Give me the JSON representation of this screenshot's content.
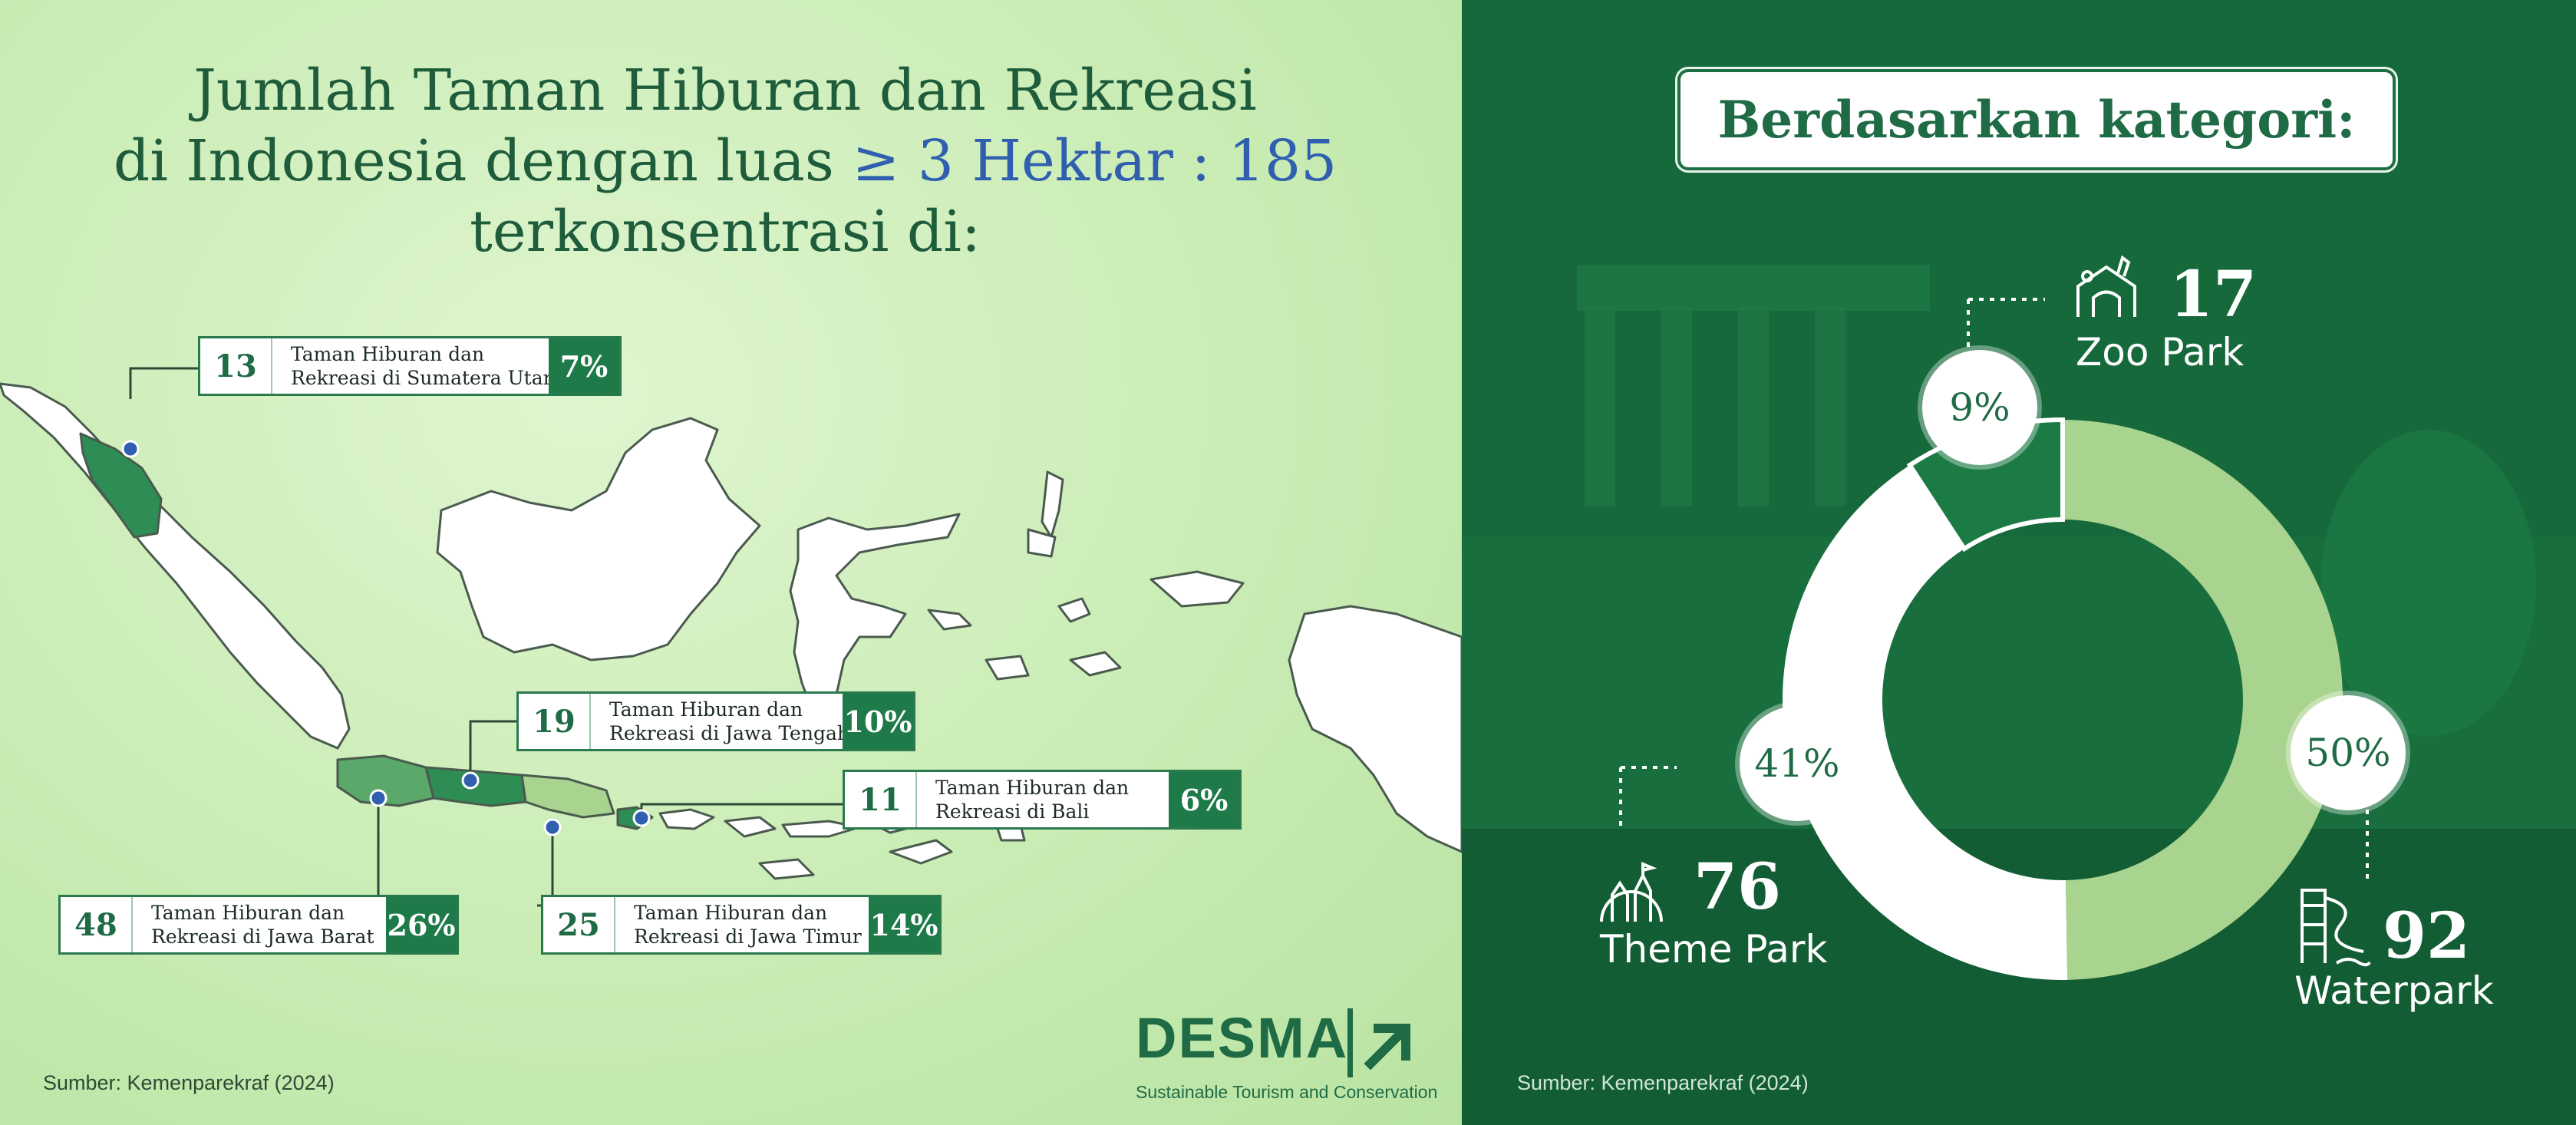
{
  "title": {
    "line1": "Jumlah Taman Hiburan dan Rekreasi",
    "line2_pre": "di Indonesia dengan luas",
    "line2_hl": "≥ 3 Hektar",
    "line2_sep": " : ",
    "line2_total": "185",
    "line3": "terkonsentrasi di:"
  },
  "source_left": "Sumber: Kemenparekraf (2024)",
  "source_right": "Sumber: Kemenparekraf (2024)",
  "logo": {
    "word": "DESMA",
    "tagline": "Sustainable Tourism and Conservation"
  },
  "colors": {
    "dark_green": "#1f7a4a",
    "mid_green": "#5aa96a",
    "light_green": "#a9d48f",
    "highlight_blue": "#2f5fae"
  },
  "regions": [
    {
      "count": "13",
      "line1": "Taman Hiburan dan",
      "line2": "Rekreasi di Sumatera Utara",
      "pct": "7%"
    },
    {
      "count": "19",
      "line1": "Taman Hiburan dan",
      "line2": "Rekreasi di Jawa Tengah",
      "pct": "10%"
    },
    {
      "count": "11",
      "line1": "Taman Hiburan dan",
      "line2": "Rekreasi di Bali",
      "pct": "6%"
    },
    {
      "count": "48",
      "line1": "Taman Hiburan dan",
      "line2": "Rekreasi di Jawa Barat",
      "pct": "26%"
    },
    {
      "count": "25",
      "line1": "Taman Hiburan dan",
      "line2": "Rekreasi di Jawa Timur",
      "pct": "14%"
    }
  ],
  "category_heading": "Berdasarkan kategori:",
  "chart_data": {
    "type": "pie",
    "donut": true,
    "title": "Berdasarkan kategori:",
    "categories": [
      "Waterpark",
      "Theme Park",
      "Zoo Park"
    ],
    "values": [
      92,
      76,
      17
    ],
    "percent_labels": [
      "50%",
      "41%",
      "9%"
    ],
    "colors": [
      "#a9d48f",
      "#ffffff",
      "#1c7a45"
    ]
  }
}
